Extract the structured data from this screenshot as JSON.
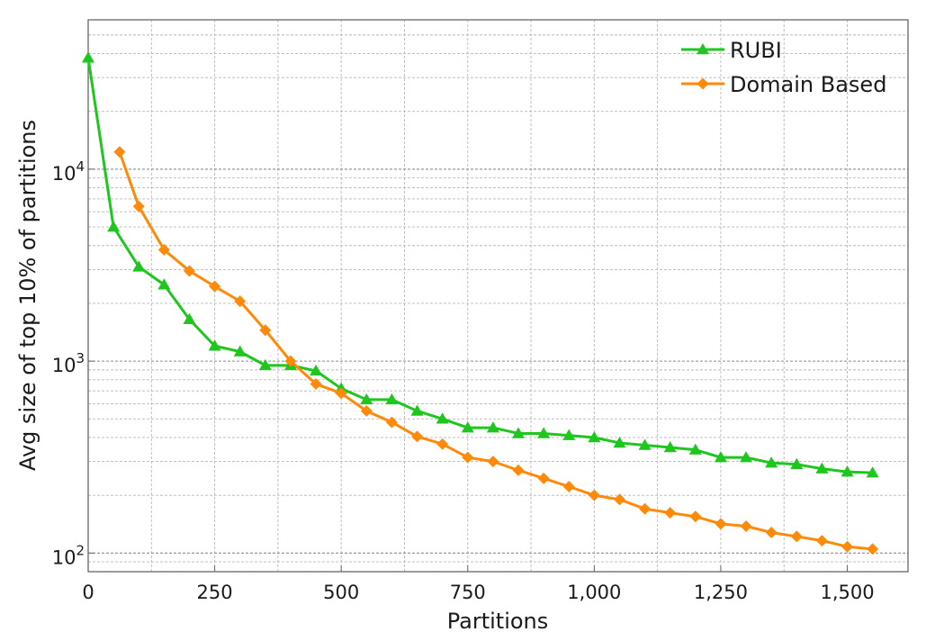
{
  "chart_data": {
    "type": "line",
    "title": "",
    "xlabel": "Partitions",
    "ylabel": "Avg size of top 10% of partitions",
    "xlim": [
      0,
      1620
    ],
    "ylim": [
      80,
      60000
    ],
    "y_scale": "log",
    "grid": true,
    "legend_position": "top-right",
    "x_ticks": [
      {
        "value": 0,
        "label": "0"
      },
      {
        "value": 250,
        "label": "250"
      },
      {
        "value": 500,
        "label": "500"
      },
      {
        "value": 750,
        "label": "750"
      },
      {
        "value": 1000,
        "label": "1,000"
      },
      {
        "value": 1250,
        "label": "1,250"
      },
      {
        "value": 1500,
        "label": "1,500"
      }
    ],
    "y_ticks": [
      {
        "value": 100,
        "base": "10",
        "exp": "2"
      },
      {
        "value": 1000,
        "base": "10",
        "exp": "3"
      },
      {
        "value": 10000,
        "base": "10",
        "exp": "4"
      }
    ],
    "series": [
      {
        "name": "RUBI",
        "color": "#1ec71e",
        "marker": "triangle",
        "x": [
          0,
          50,
          100,
          150,
          200,
          250,
          300,
          350,
          400,
          450,
          500,
          550,
          600,
          650,
          700,
          750,
          800,
          850,
          900,
          950,
          1000,
          1050,
          1100,
          1150,
          1200,
          1250,
          1300,
          1350,
          1400,
          1450,
          1500,
          1550
        ],
        "y": [
          38000,
          5000,
          3100,
          2500,
          1650,
          1200,
          1120,
          950,
          950,
          890,
          720,
          630,
          630,
          550,
          500,
          450,
          450,
          420,
          420,
          410,
          400,
          375,
          365,
          355,
          345,
          315,
          315,
          295,
          290,
          275,
          265,
          262
        ]
      },
      {
        "name": "Domain Based",
        "color": "#ff8a0a",
        "marker": "diamond",
        "x": [
          62,
          100,
          150,
          200,
          250,
          300,
          350,
          400,
          450,
          500,
          550,
          600,
          650,
          700,
          750,
          800,
          850,
          900,
          950,
          1000,
          1050,
          1100,
          1150,
          1200,
          1250,
          1300,
          1350,
          1400,
          1450,
          1500,
          1550
        ],
        "y": [
          12300,
          6400,
          3800,
          2950,
          2450,
          2050,
          1450,
          1000,
          760,
          680,
          550,
          480,
          405,
          370,
          315,
          300,
          270,
          245,
          222,
          200,
          190,
          170,
          162,
          155,
          142,
          138,
          128,
          122,
          116,
          108,
          105
        ]
      }
    ]
  }
}
